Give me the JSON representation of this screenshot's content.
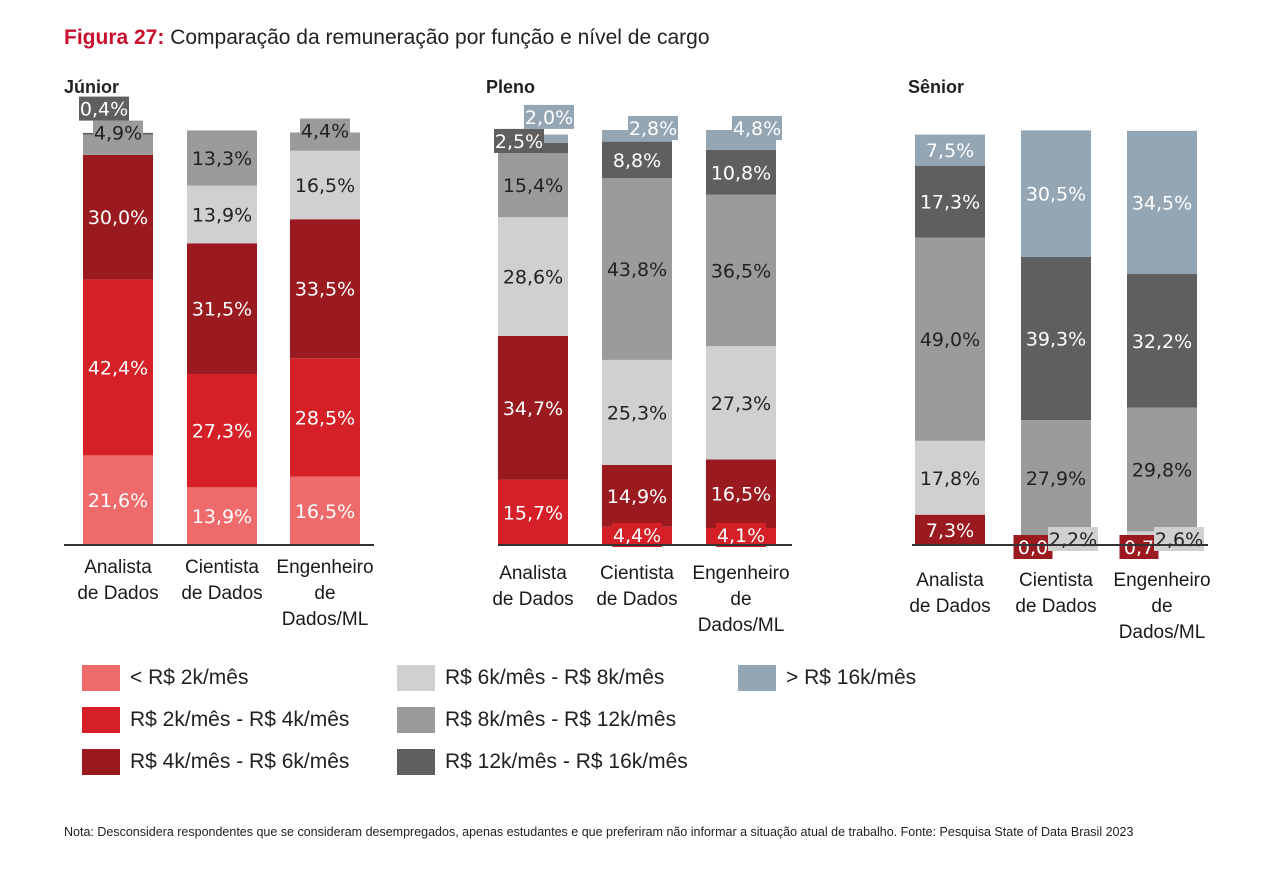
{
  "figure_label": "Figura 27:",
  "figure_title": "Comparação da remuneração por função e nível de cargo",
  "note": "Nota: Desconsidera respondentes que se consideram desempregados, apenas estudantes e que preferiram não informar a situação atual de trabalho. Fonte: Pesquisa State of Data Brasil 2023",
  "legend": [
    {
      "label": "< R$ 2k/mês",
      "color": "#ef6b6b"
    },
    {
      "label": "R$ 2k/mês - R$ 4k/mês",
      "color": "#d42026"
    },
    {
      "label": "R$ 4k/mês - R$ 6k/mês",
      "color": "#9a1a1f"
    },
    {
      "label": "R$ 6k/mês - R$ 8k/mês",
      "color": "#d0d0d0"
    },
    {
      "label": "R$ 8k/mês - R$ 12k/mês",
      "color": "#9b9b9b"
    },
    {
      "label": "R$ 12k/mês - R$ 16k/mês",
      "color": "#5f5f5f"
    },
    {
      "label": "> R$ 16k/mês",
      "color": "#94a5b4"
    }
  ],
  "chart_data": [
    {
      "type": "bar",
      "stacked": true,
      "title": "Júnior",
      "categories": [
        "Analista de Dados",
        "Cientista de Dados",
        "Engenheiro de Dados/ML"
      ],
      "category_lines": [
        [
          "Analista",
          "de Dados"
        ],
        [
          "Cientista",
          "de Dados"
        ],
        [
          "Engenheiro",
          "de",
          "Dados/ML"
        ]
      ],
      "series": [
        {
          "name": "< R$ 2k/mês",
          "values": [
            21.6,
            13.9,
            16.5
          ],
          "labels": [
            "21,6%",
            "13,9%",
            "16,5%"
          ]
        },
        {
          "name": "R$ 2k/mês - R$ 4k/mês",
          "values": [
            42.4,
            27.3,
            28.5
          ],
          "labels": [
            "42,4%",
            "27,3%",
            "28,5%"
          ]
        },
        {
          "name": "R$ 4k/mês - R$ 6k/mês",
          "values": [
            30.0,
            31.5,
            33.5
          ],
          "labels": [
            "30,0%",
            "31,5%",
            "33,5%"
          ]
        },
        {
          "name": "R$ 6k/mês - R$ 8k/mês",
          "values": [
            0,
            13.9,
            16.5
          ],
          "labels": [
            "",
            "13,9%",
            "16,5%"
          ]
        },
        {
          "name": "R$ 8k/mês - R$ 12k/mês",
          "values": [
            4.9,
            13.3,
            4.4
          ],
          "labels": [
            "4,9%",
            "13,3%",
            "4,4%"
          ]
        },
        {
          "name": "R$ 12k/mês - R$ 16k/mês",
          "values": [
            0.4,
            0,
            0
          ],
          "labels": [
            "0,4%",
            "",
            ""
          ]
        },
        {
          "name": "> R$ 16k/mês",
          "values": [
            0,
            0,
            0
          ],
          "labels": [
            "",
            "",
            ""
          ]
        }
      ]
    },
    {
      "type": "bar",
      "stacked": true,
      "title": "Pleno",
      "categories": [
        "Analista de Dados",
        "Cientista de Dados",
        "Engenheiro de Dados/ML"
      ],
      "category_lines": [
        [
          "Analista",
          "de Dados"
        ],
        [
          "Cientista",
          "de Dados"
        ],
        [
          "Engenheiro",
          "de",
          "Dados/ML"
        ]
      ],
      "series": [
        {
          "name": "< R$ 2k/mês",
          "values": [
            0,
            0,
            0
          ],
          "labels": [
            "",
            "",
            ""
          ]
        },
        {
          "name": "R$ 2k/mês - R$ 4k/mês",
          "values": [
            15.7,
            4.4,
            4.1
          ],
          "labels": [
            "15,7%",
            "4,4%",
            "4,1%"
          ]
        },
        {
          "name": "R$ 4k/mês - R$ 6k/mês",
          "values": [
            34.7,
            14.9,
            16.5
          ],
          "labels": [
            "34,7%",
            "14,9%",
            "16,5%"
          ]
        },
        {
          "name": "R$ 6k/mês - R$ 8k/mês",
          "values": [
            28.6,
            25.3,
            27.3
          ],
          "labels": [
            "28,6%",
            "25,3%",
            "27,3%"
          ]
        },
        {
          "name": "R$ 8k/mês - R$ 12k/mês",
          "values": [
            15.4,
            43.8,
            36.5
          ],
          "labels": [
            "15,4%",
            "43,8%",
            "36,5%"
          ]
        },
        {
          "name": "R$ 12k/mês - R$ 16k/mês",
          "values": [
            2.5,
            8.8,
            10.8
          ],
          "labels": [
            "2,5%",
            "8,8%",
            "10,8%"
          ]
        },
        {
          "name": "> R$ 16k/mês",
          "values": [
            2.0,
            2.8,
            4.8
          ],
          "labels": [
            "2,0%",
            "2,8%",
            "4,8%"
          ]
        }
      ]
    },
    {
      "type": "bar",
      "stacked": true,
      "title": "Sênior",
      "categories": [
        "Analista de Dados",
        "Cientista de Dados",
        "Engenheiro de Dados/ML"
      ],
      "category_lines": [
        [
          "Analista",
          "de Dados"
        ],
        [
          "Cientista",
          "de Dados"
        ],
        [
          "Engenheiro",
          "de",
          "Dados/ML"
        ]
      ],
      "series": [
        {
          "name": "< R$ 2k/mês",
          "values": [
            0,
            0,
            0
          ],
          "labels": [
            "",
            "",
            ""
          ]
        },
        {
          "name": "R$ 2k/mês - R$ 4k/mês",
          "values": [
            0,
            0,
            0
          ],
          "labels": [
            "",
            "",
            ""
          ]
        },
        {
          "name": "R$ 4k/mês - R$ 6k/mês",
          "values": [
            7.3,
            0.0,
            0.7
          ],
          "labels": [
            "7,3%",
            "0,0",
            "0,7"
          ]
        },
        {
          "name": "R$ 6k/mês - R$ 8k/mês",
          "values": [
            17.8,
            2.2,
            2.6
          ],
          "labels": [
            "17,8%",
            "2,2%",
            "2,6%"
          ]
        },
        {
          "name": "R$ 8k/mês - R$ 12k/mês",
          "values": [
            49.0,
            27.9,
            29.8
          ],
          "labels": [
            "49,0%",
            "27,9%",
            "29,8%"
          ]
        },
        {
          "name": "R$ 12k/mês - R$ 16k/mês",
          "values": [
            17.3,
            39.3,
            32.2
          ],
          "labels": [
            "17,3%",
            "39,3%",
            "32,2%"
          ]
        },
        {
          "name": "> R$ 16k/mês",
          "values": [
            7.5,
            30.5,
            34.5
          ],
          "labels": [
            "7,5%",
            "30,5%",
            "34,5%"
          ]
        }
      ]
    }
  ]
}
